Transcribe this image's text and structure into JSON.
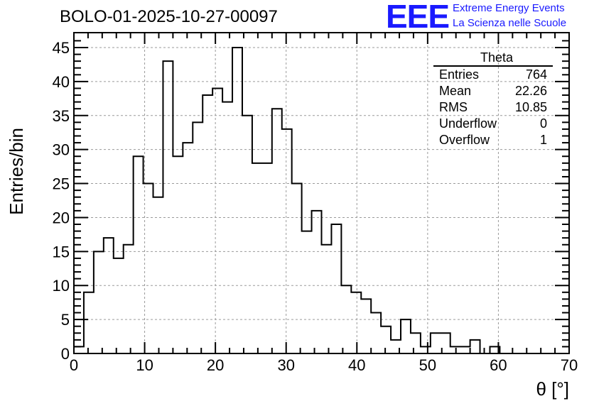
{
  "title": "BOLO-01-2025-10-27-00097",
  "logo": {
    "text": "EEE",
    "line1": "Extreme Energy Events",
    "line2": "La Scienza nelle Scuole",
    "color": "#1a1aff"
  },
  "stats": {
    "title": "Theta",
    "rows": [
      {
        "label": "Entries",
        "value": "764"
      },
      {
        "label": "Mean",
        "value": "22.26"
      },
      {
        "label": "RMS",
        "value": "10.85"
      },
      {
        "label": "Underflow",
        "value": "0"
      },
      {
        "label": "Overflow",
        "value": "1"
      }
    ]
  },
  "chart_data": {
    "type": "bar",
    "histogram": true,
    "xlabel": "θ [°]",
    "ylabel": "Entries/bin",
    "xlim": [
      0,
      70
    ],
    "ylim": [
      0,
      47
    ],
    "bin_width": 1.4,
    "bin_start": 0,
    "values": [
      1,
      9,
      15,
      17,
      14,
      16,
      29,
      25,
      23,
      43,
      29,
      31,
      34,
      38,
      39,
      37,
      45,
      35,
      28,
      28,
      36,
      33,
      25,
      18,
      21,
      16,
      19,
      10,
      9,
      8,
      6,
      4,
      2,
      5,
      3,
      1,
      3,
      3,
      1,
      1,
      2,
      0,
      1,
      0,
      0,
      0,
      0,
      0,
      0,
      0
    ],
    "x_ticks": [
      0,
      10,
      20,
      30,
      40,
      50,
      60,
      70
    ],
    "y_ticks": [
      0,
      5,
      10,
      15,
      20,
      25,
      30,
      35,
      40,
      45
    ],
    "grid": true,
    "line_color": "#000000"
  }
}
